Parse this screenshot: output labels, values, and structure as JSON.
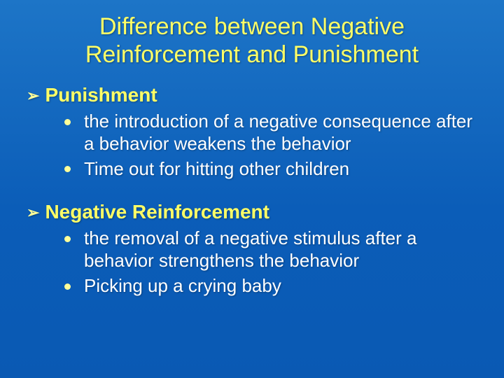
{
  "colors": {
    "background_top": "#1d75c7",
    "background_bottom": "#0a59b3",
    "title_color": "#ffff66",
    "section_color": "#ffff66",
    "body_text_color": "#ffffff",
    "arrow_color": "#ffff99",
    "dot_color": "#ffff99"
  },
  "typography": {
    "title_fontsize": 34,
    "section_fontsize": 28,
    "body_fontsize": 26,
    "font_family": "Arial"
  },
  "title": "Difference between Negative Reinforcement and Punishment",
  "sections": [
    {
      "header": "Punishment",
      "bullets": [
        "the introduction of a negative consequence after a behavior weakens the behavior",
        "Time out for hitting other children"
      ]
    },
    {
      "header": "Negative Reinforcement",
      "bullets": [
        "the removal of a negative stimulus after a behavior strengthens the behavior",
        "Picking up a crying baby"
      ]
    }
  ]
}
